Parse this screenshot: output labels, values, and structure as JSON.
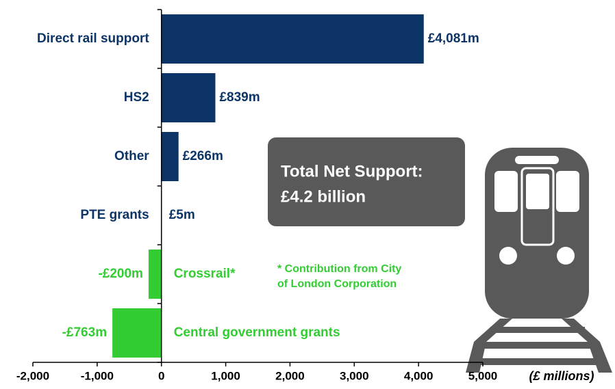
{
  "chart_data": {
    "type": "hbar",
    "categories": [
      "Direct rail support",
      "HS2",
      "Other",
      "PTE grants",
      "Crossrail*",
      "Central government grants"
    ],
    "values": [
      4081,
      839,
      266,
      5,
      -200,
      -763
    ],
    "value_labels": [
      "£4,081m",
      "£839m",
      "£266m",
      "£5m",
      "-£200m",
      "-£763m"
    ],
    "colors": [
      "#0c3466",
      "#0c3466",
      "#0c3466",
      "#0c3466",
      "#33cc33",
      "#33cc33"
    ],
    "xlim": [
      -2000,
      5000
    ],
    "xticks": [
      {
        "value": -2000,
        "label": "-2,000"
      },
      {
        "value": -1000,
        "label": "-1,000"
      },
      0,
      {
        "value": 1000,
        "label": "1,000"
      },
      {
        "value": 2000,
        "label": "2,000"
      },
      {
        "value": 3000,
        "label": "3,000"
      },
      {
        "value": 4000,
        "label": "4,000"
      },
      {
        "value": 5000,
        "label": "5,000"
      }
    ],
    "xlabel": "(£ millions)",
    "annotations": {
      "box": [
        "Total Net Support:",
        "£4.2 billion"
      ],
      "note": [
        "* Contribution from City",
        "of London Corporation"
      ]
    }
  }
}
